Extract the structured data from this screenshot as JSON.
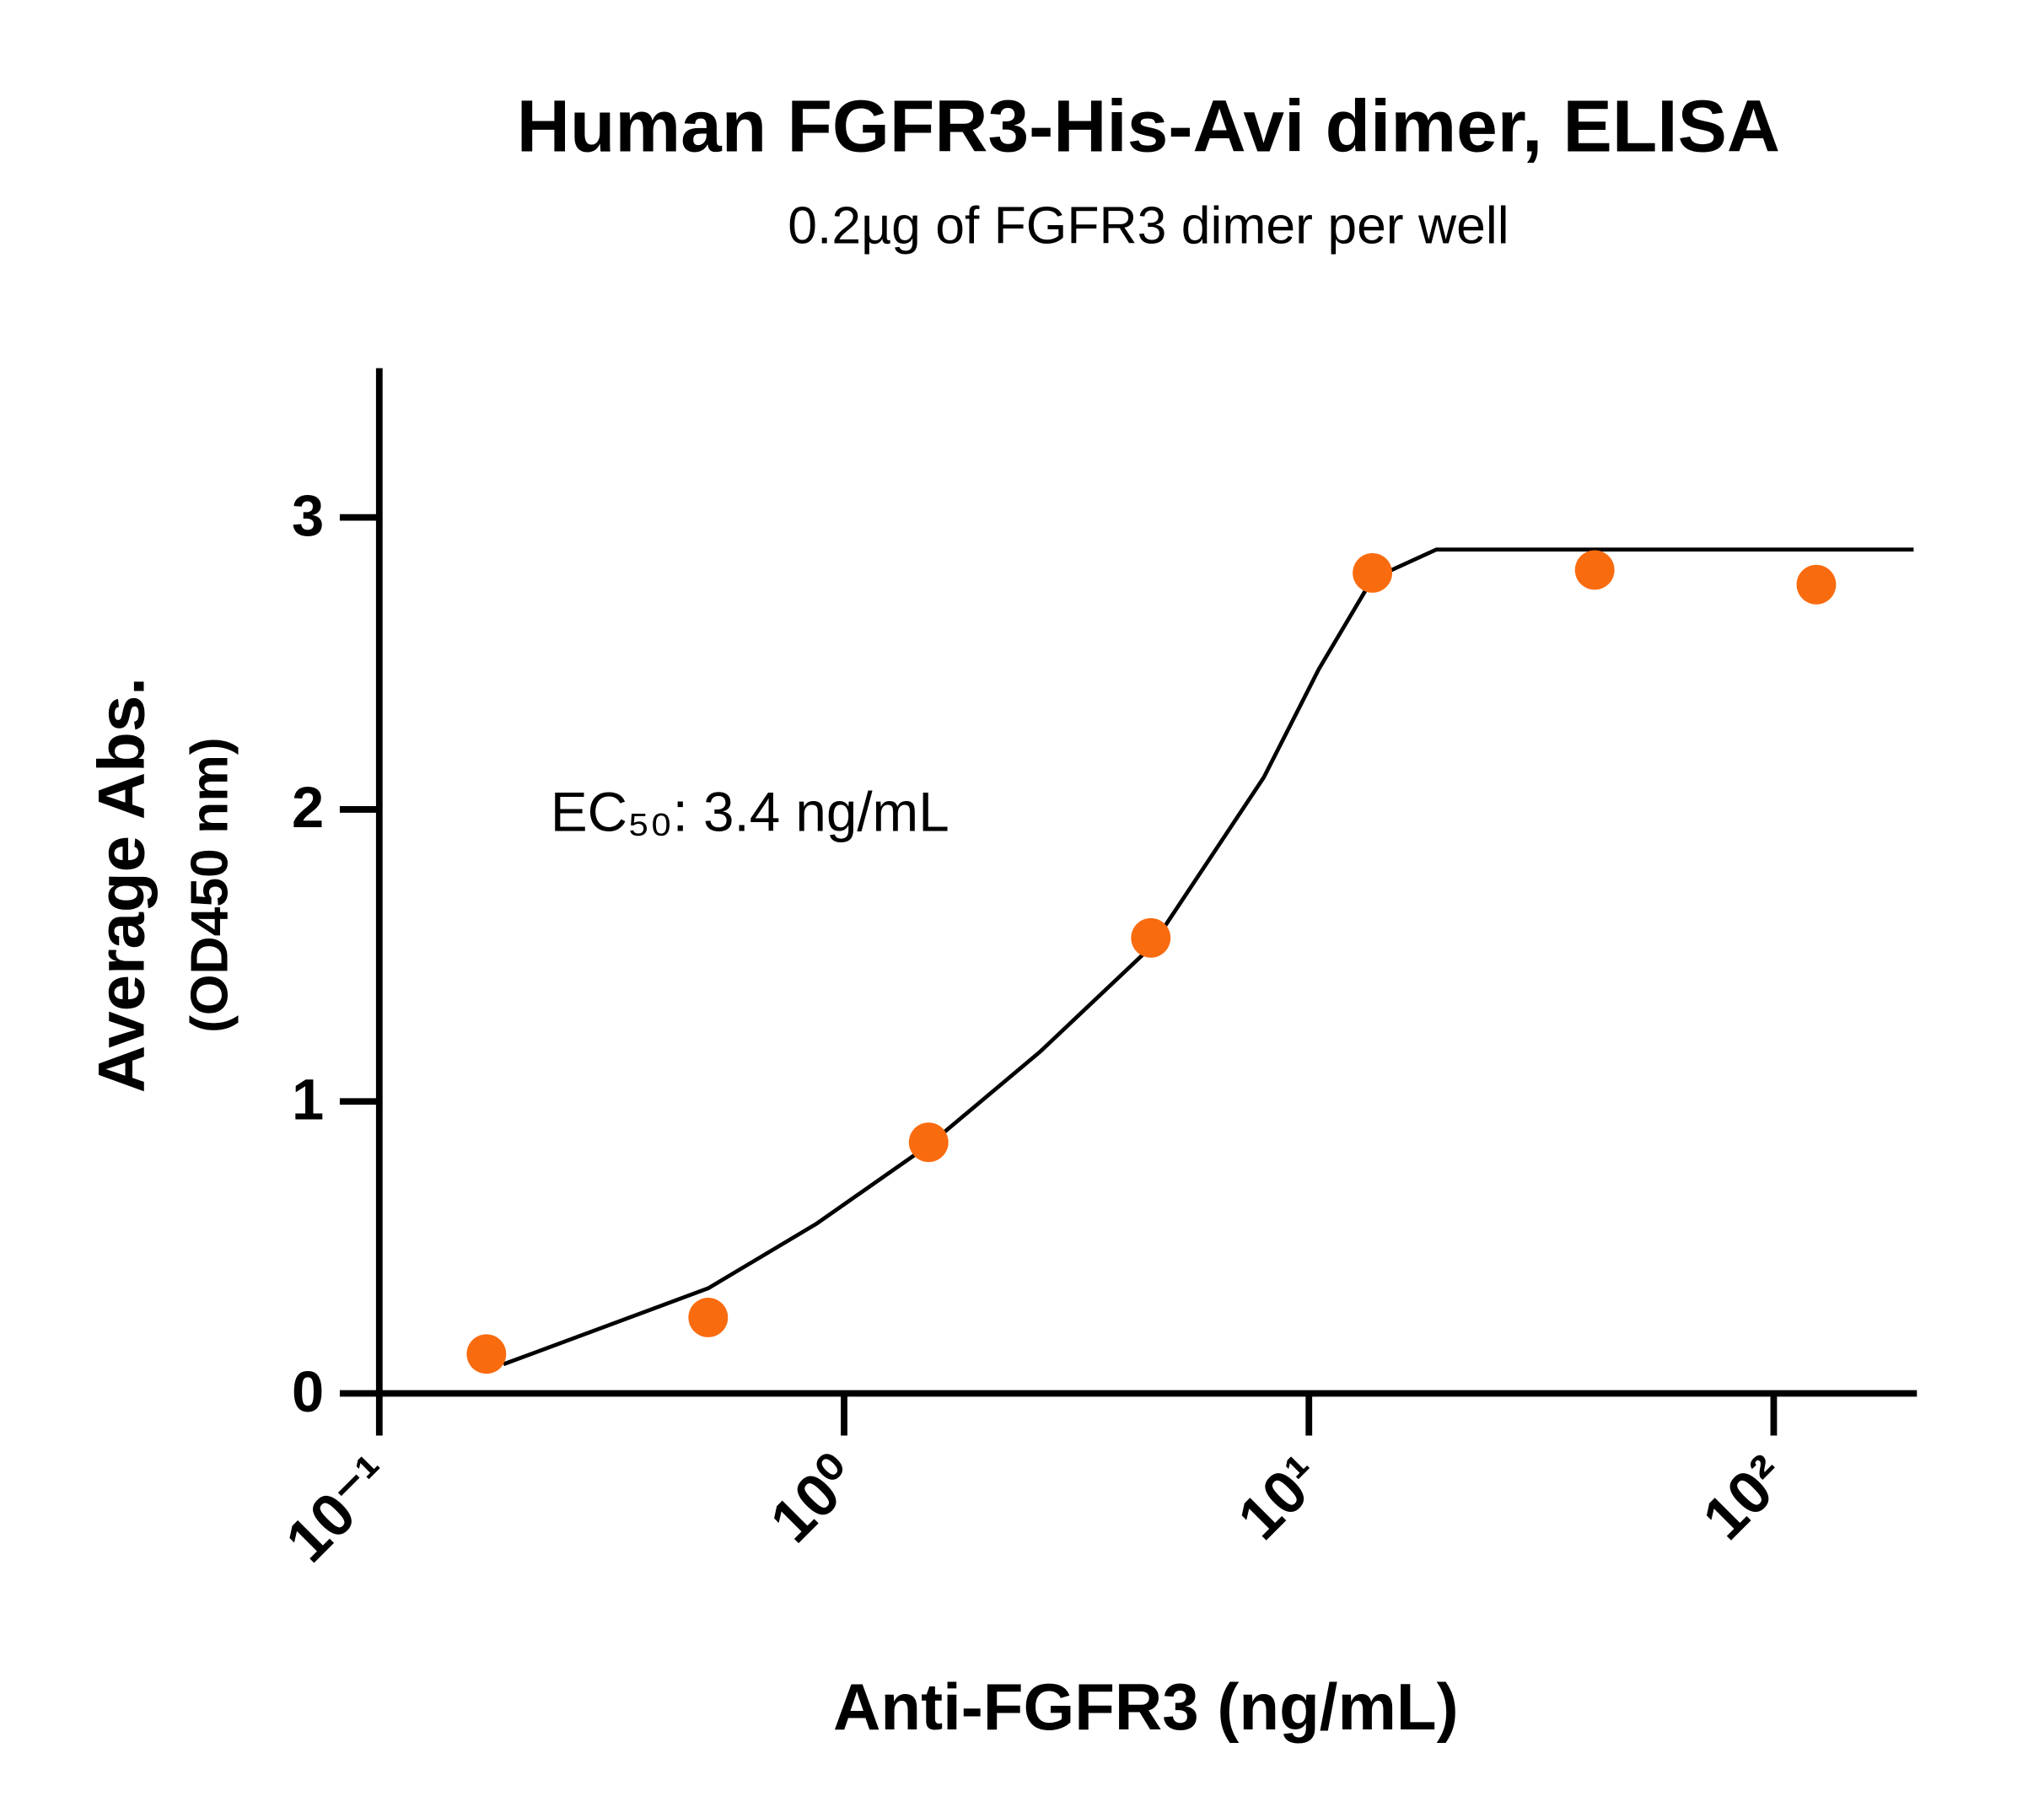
{
  "chart_data": {
    "type": "scatter",
    "title": "Human FGFR3-His-Avi dimer, ELISA",
    "subtitle": "0.2µg of FGFR3 dimer per well",
    "xlabel": "Anti-FGFR3 (ng/mL)",
    "ylabel": [
      "Average Abs.",
      "(OD450 nm)"
    ],
    "annotation": "EC₅₀: 3.4 ng/mL",
    "xscale": "log",
    "xlim": [
      0.1,
      200
    ],
    "xticks": [
      {
        "value": 0.1,
        "label": "10⁻¹"
      },
      {
        "value": 1,
        "label": "10⁰"
      },
      {
        "value": 10,
        "label": "10¹"
      },
      {
        "value": 100,
        "label": "10²"
      }
    ],
    "ylim": [
      0,
      3.5
    ],
    "yticks": [
      0,
      1,
      2,
      3
    ],
    "grid": false,
    "series": [
      {
        "type": "scatter",
        "color": "#f96b0f",
        "x": [
          0.17,
          0.51,
          1.52,
          4.57,
          13.7,
          41.2,
          123.5
        ],
        "values": [
          0.135,
          0.26,
          0.86,
          1.56,
          2.81,
          2.82,
          2.77
        ]
      },
      {
        "type": "line",
        "color": "#000000",
        "x": [
          0.185,
          0.51,
          0.87,
          1.52,
          2.64,
          4.58,
          8.0,
          10.5,
          13.7,
          18.8,
          200
        ],
        "values": [
          0.1,
          0.36,
          0.58,
          0.85,
          1.17,
          1.53,
          2.11,
          2.48,
          2.79,
          2.89,
          2.89
        ]
      }
    ]
  }
}
